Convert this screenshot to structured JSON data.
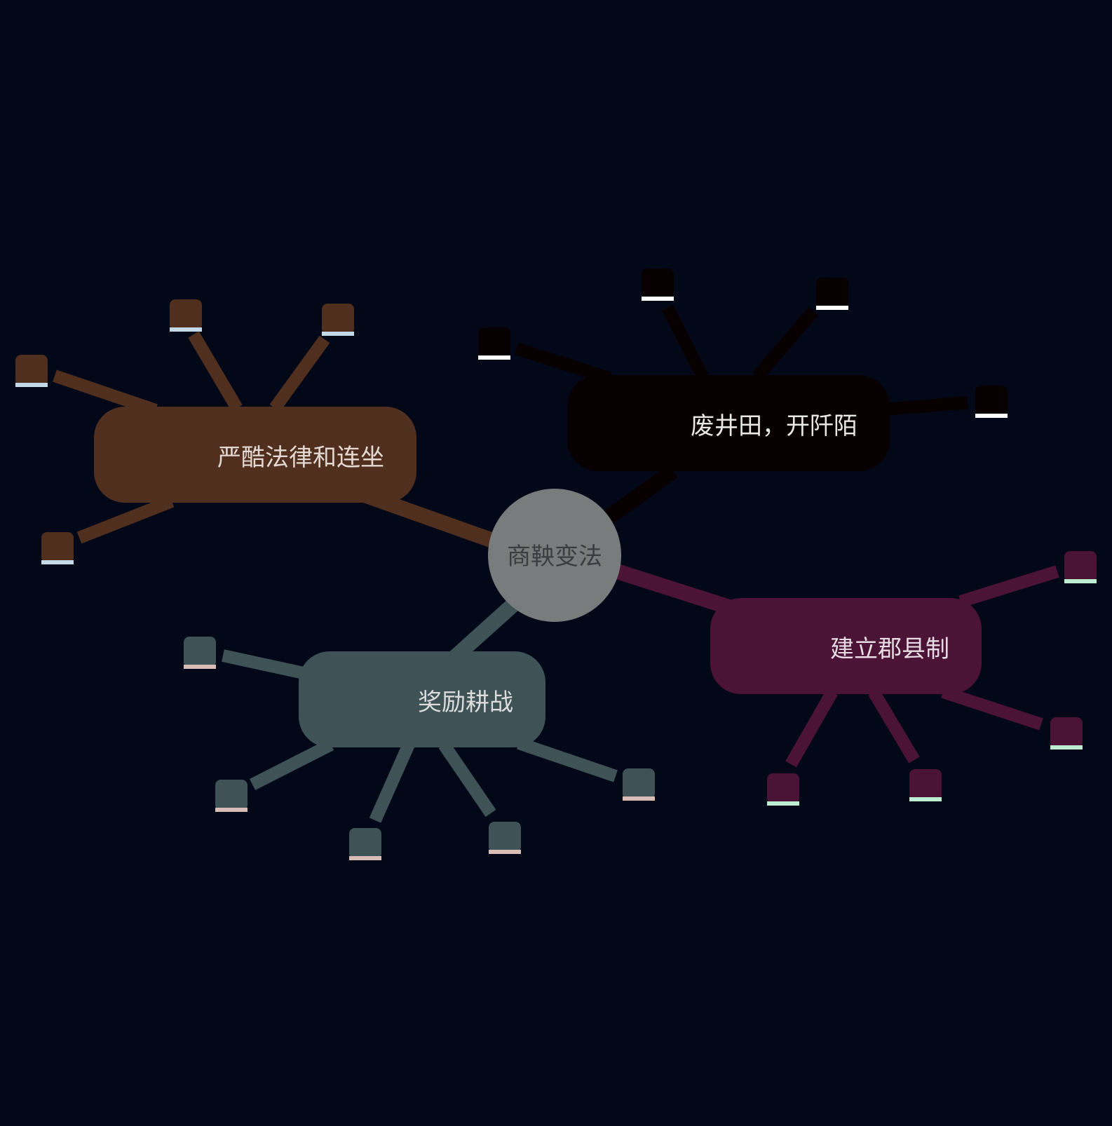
{
  "background": "#020818",
  "center": {
    "label": "商鞅变法",
    "fill": "#787c7d",
    "text_color": "#3a3d40"
  },
  "branches": [
    {
      "id": "law",
      "label": "严酷法律和连坐",
      "fill": "#512f1e",
      "text_color": "#e4d9d2",
      "leaf_accent": "#c4d9e8",
      "leaf_count": 4
    },
    {
      "id": "land",
      "label": "废井田，开阡陌",
      "fill": "#080000",
      "text_color": "#e8e8e8",
      "leaf_accent": "#ffffff",
      "leaf_count": 4
    },
    {
      "id": "county",
      "label": "建立郡县制",
      "fill": "#4b1335",
      "text_color": "#e8dce4",
      "leaf_accent": "#bdeed1",
      "leaf_count": 4
    },
    {
      "id": "reward",
      "label": "奖励耕战",
      "fill": "#3f5357",
      "text_color": "#dcdcdc",
      "leaf_accent": "#d8bdb6",
      "leaf_count": 5
    }
  ]
}
